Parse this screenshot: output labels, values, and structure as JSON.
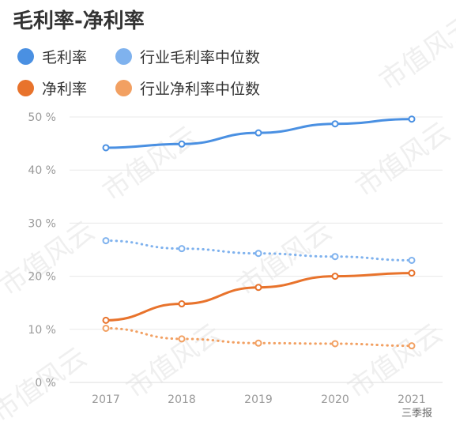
{
  "title": "毛利率-净利率",
  "period_label": "三季报",
  "watermark": "市值风云",
  "legend": [
    {
      "label": "毛利率",
      "color": "#4A90E2"
    },
    {
      "label": "行业毛利率中位数",
      "color": "#7FB2EE"
    },
    {
      "label": "净利率",
      "color": "#E8732C"
    },
    {
      "label": "行业净利率中位数",
      "color": "#F2A062"
    }
  ],
  "chart_data": {
    "type": "line",
    "x": [
      "2017",
      "2018",
      "2019",
      "2020",
      "2021"
    ],
    "ylim": [
      0,
      50
    ],
    "yticks": [
      "0 %",
      "10 %",
      "20 %",
      "30 %",
      "40 %",
      "50 %"
    ],
    "grid": true,
    "series": [
      {
        "name": "毛利率",
        "values": [
          44.2,
          44.9,
          47.0,
          48.7,
          49.6
        ],
        "color": "#4A90E2",
        "dashed": false
      },
      {
        "name": "行业毛利率中位数",
        "values": [
          26.7,
          25.2,
          24.3,
          23.7,
          23.0
        ],
        "color": "#7FB2EE",
        "dashed": true
      },
      {
        "name": "净利率",
        "values": [
          11.7,
          14.8,
          17.9,
          20.0,
          20.6
        ],
        "color": "#E8732C",
        "dashed": false
      },
      {
        "name": "行业净利率中位数",
        "values": [
          10.2,
          8.2,
          7.4,
          7.3,
          6.9
        ],
        "color": "#F2A062",
        "dashed": true
      }
    ]
  }
}
